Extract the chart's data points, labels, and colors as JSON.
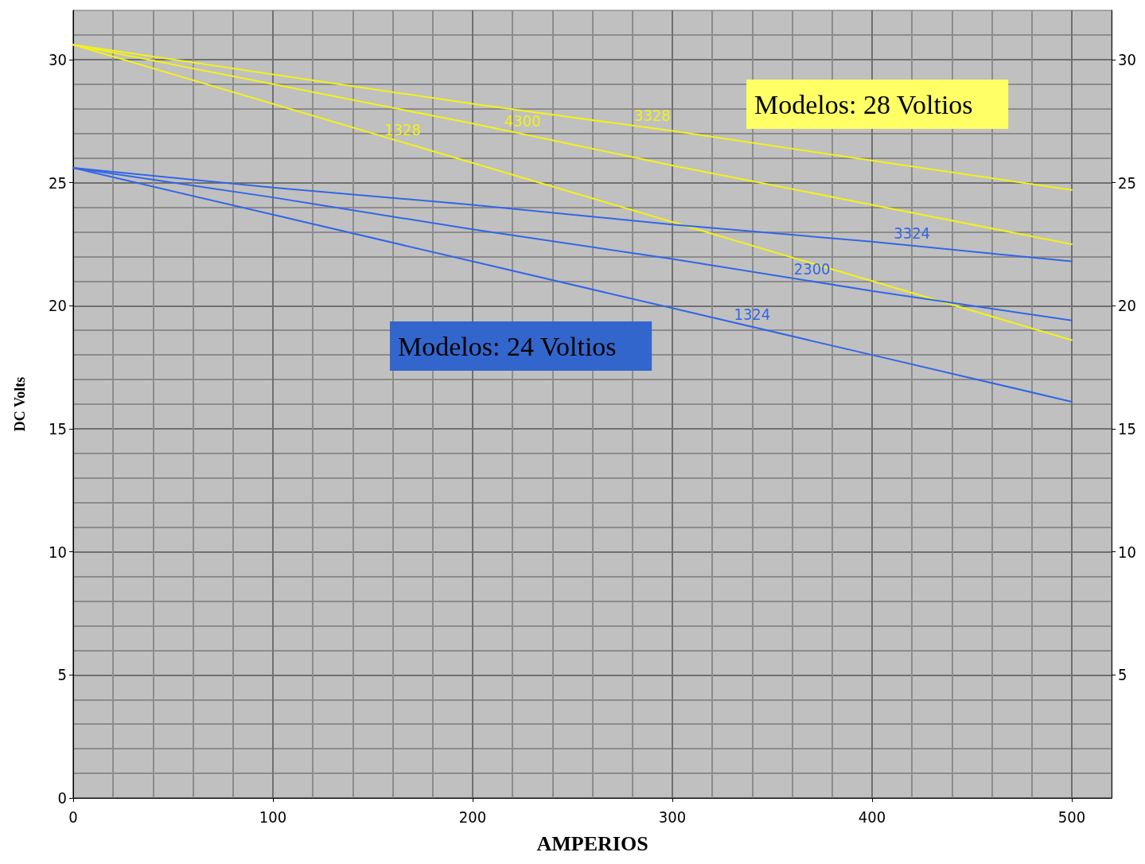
{
  "chart_data": {
    "type": "line",
    "xlabel": "AMPERIOS",
    "ylabel": "DC Volts",
    "xlim": [
      0,
      520
    ],
    "xticks": [
      0,
      100,
      200,
      300,
      400,
      500
    ],
    "ylim": [
      0,
      32
    ],
    "yticks": [
      0,
      5,
      10,
      15,
      20,
      25,
      30
    ],
    "y2lim": [
      0,
      32
    ],
    "y2ticks": [
      5,
      10,
      15,
      20,
      25,
      30
    ],
    "grid": true,
    "legend": false,
    "marker": "none",
    "line_style": "solid",
    "annotations": [
      "Modelos: 28 Voltios",
      "Modelos: 24 Voltios"
    ],
    "series": [
      {
        "name": "3328",
        "color": "#f2f21a",
        "x": [
          0,
          100,
          200,
          300,
          400,
          500
        ],
        "values": [
          30.6,
          29.4,
          28.2,
          27.1,
          25.9,
          24.7
        ]
      },
      {
        "name": "4300",
        "color": "#f2f21a",
        "x": [
          0,
          100,
          200,
          300,
          400,
          500
        ],
        "values": [
          30.6,
          29.0,
          27.4,
          25.7,
          24.1,
          22.5
        ]
      },
      {
        "name": "1328",
        "color": "#f2f21a",
        "x": [
          0,
          100,
          200,
          300,
          400,
          500
        ],
        "values": [
          30.6,
          28.2,
          25.8,
          23.4,
          21.0,
          18.6
        ]
      },
      {
        "name": "3324",
        "color": "#3366e6",
        "x": [
          0,
          100,
          200,
          300,
          400,
          500
        ],
        "values": [
          25.6,
          24.8,
          24.1,
          23.3,
          22.6,
          21.8
        ]
      },
      {
        "name": "2300",
        "color": "#3366e6",
        "x": [
          0,
          100,
          200,
          300,
          400,
          500
        ],
        "values": [
          25.6,
          24.4,
          23.1,
          21.9,
          20.6,
          19.4
        ]
      },
      {
        "name": "1324",
        "color": "#3366e6",
        "x": [
          0,
          100,
          200,
          300,
          400,
          500
        ],
        "values": [
          25.6,
          23.7,
          21.8,
          19.9,
          18.0,
          16.1
        ]
      }
    ]
  }
}
